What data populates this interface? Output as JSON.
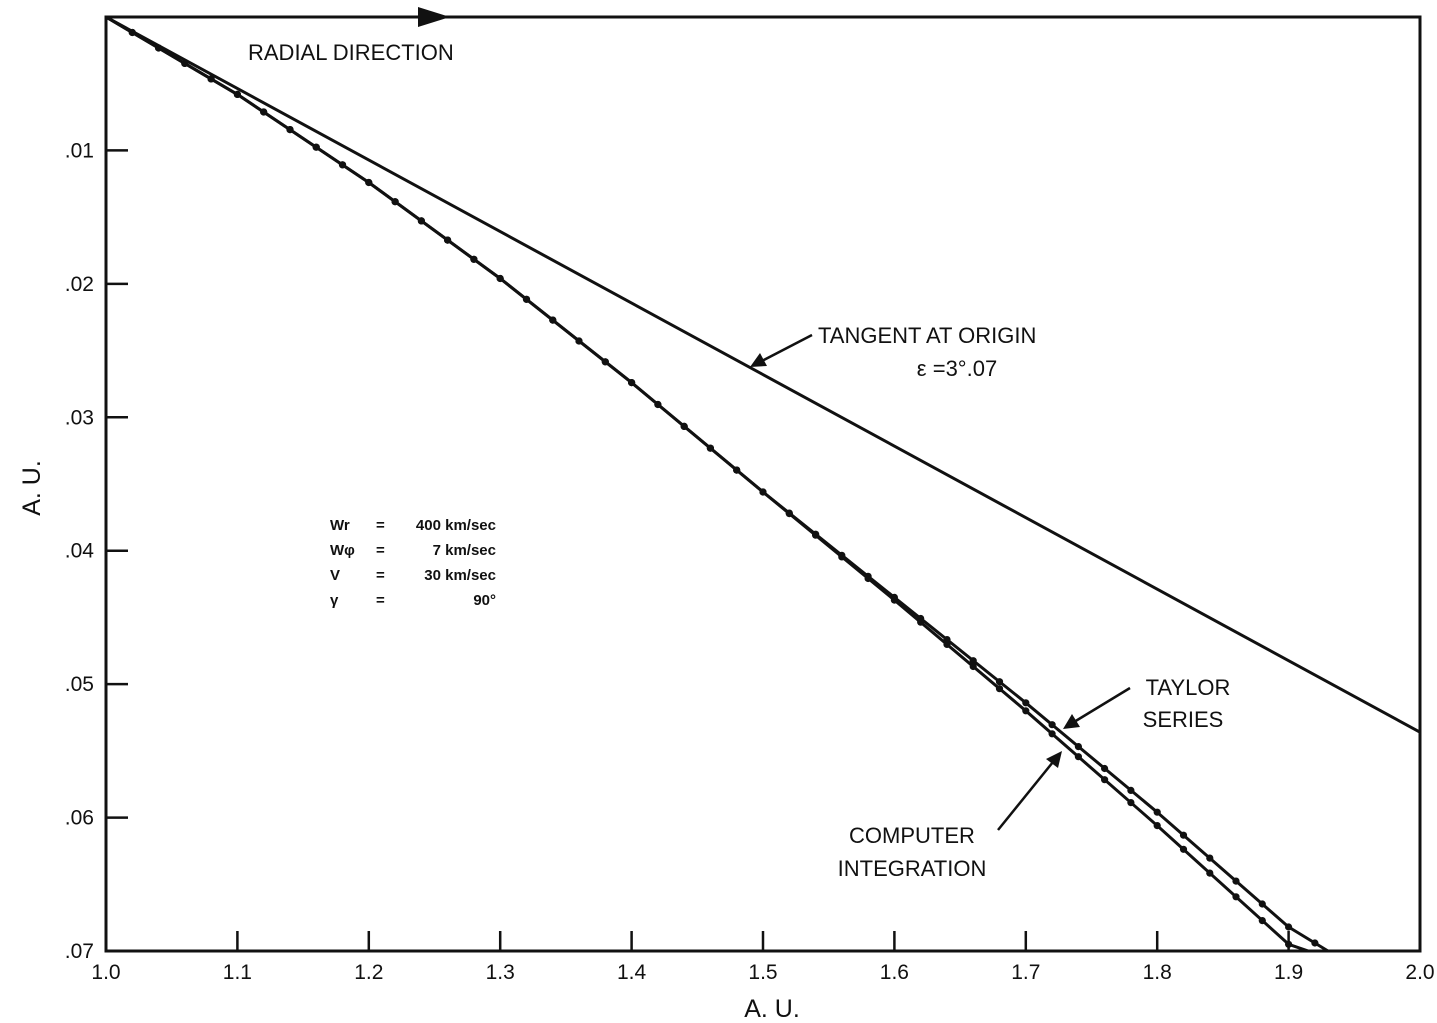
{
  "chart_data": {
    "type": "line",
    "title": "",
    "xlabel": "A. U.",
    "ylabel": "A. U.",
    "xlim": [
      1.0,
      2.0
    ],
    "ylim": [
      0.0,
      0.07
    ],
    "y_axis_inverted": true,
    "grid": false,
    "x_ticks": [
      "1.0",
      "1.1",
      "1.2",
      "1.3",
      "1.4",
      "1.5",
      "1.6",
      "1.7",
      "1.8",
      "1.9",
      "2.0"
    ],
    "y_ticks": [
      ".01",
      ".02",
      ".03",
      ".04",
      ".05",
      ".06",
      ".07"
    ],
    "series": [
      {
        "name": "TANGENT AT ORIGIN",
        "markers": false,
        "x": [
          1.0,
          2.0
        ],
        "y": [
          0.0,
          0.0536
        ]
      },
      {
        "name": "TAYLOR SERIES",
        "markers": true,
        "x": [
          1.0,
          1.1,
          1.2,
          1.3,
          1.4,
          1.5,
          1.6,
          1.7,
          1.8,
          1.9,
          1.93
        ],
        "y": [
          0.0,
          0.0058,
          0.0124,
          0.0196,
          0.0274,
          0.0356,
          0.0435,
          0.0514,
          0.0596,
          0.0682,
          0.07
        ]
      },
      {
        "name": "COMPUTER INTEGRATION",
        "markers": true,
        "x": [
          1.0,
          1.1,
          1.2,
          1.3,
          1.4,
          1.5,
          1.6,
          1.7,
          1.8,
          1.9,
          1.915
        ],
        "y": [
          0.0,
          0.0058,
          0.0124,
          0.0196,
          0.0274,
          0.0356,
          0.0437,
          0.052,
          0.0606,
          0.0695,
          0.07
        ]
      }
    ],
    "annotations": {
      "radial_direction": "RADIAL DIRECTION",
      "tangent_line1": "TANGENT AT ORIGIN",
      "tangent_line2": "ε =3°.07",
      "taylor_line1": "TAYLOR",
      "taylor_line2": "SERIES",
      "computer_line1": "COMPUTER",
      "computer_line2": "INTEGRATION"
    },
    "parameters": [
      {
        "symbol": "Wr",
        "eq": "=",
        "value": "400 km/sec"
      },
      {
        "symbol": "Wφ",
        "eq": "=",
        "value": "7 km/sec"
      },
      {
        "symbol": "V",
        "eq": "=",
        "value": "30 km/sec"
      },
      {
        "symbol": "γ",
        "eq": "=",
        "value": "90°"
      }
    ]
  }
}
